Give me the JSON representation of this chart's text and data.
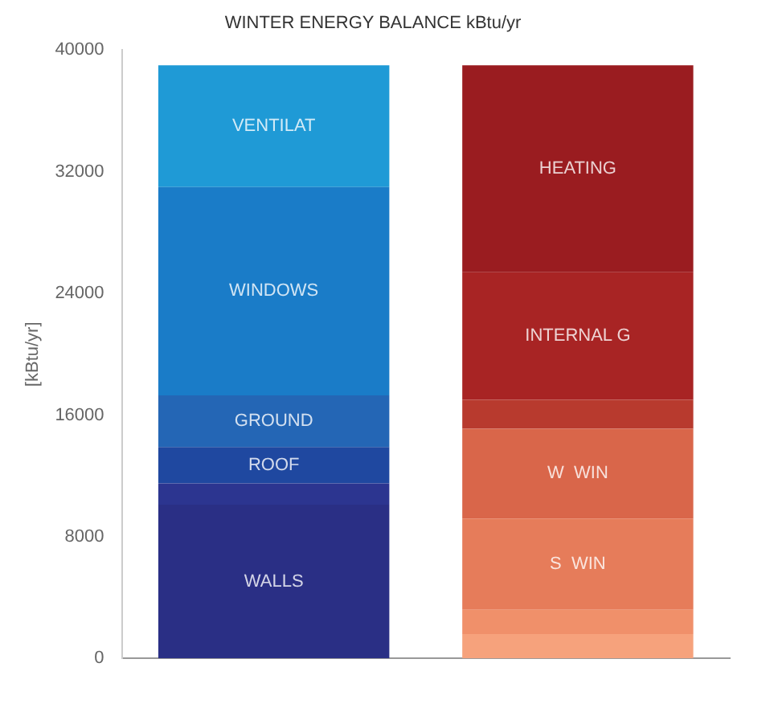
{
  "chart_data": {
    "type": "bar",
    "title": "WINTER ENERGY BALANCE kBtu/yr",
    "ylabel": "[kBtu/yr]",
    "categories": [
      null,
      null
    ],
    "stacked": true,
    "ylim": [
      0,
      40000
    ],
    "yticks": [
      0,
      8000,
      16000,
      24000,
      32000,
      40000
    ],
    "grid": false,
    "legend": false,
    "series": [
      {
        "name": "WALLS",
        "color": "#2a2f85",
        "values": [
          10100,
          null
        ]
      },
      {
        "color": "#2c3590",
        "values": [
          1400,
          null
        ]
      },
      {
        "name": "ROOF",
        "color": "#1f48a0",
        "values": [
          2400,
          null
        ]
      },
      {
        "name": "GROUND",
        "color": "#2466b5",
        "values": [
          3400,
          null
        ]
      },
      {
        "name": "WINDOWS",
        "color": "#1a7cc8",
        "values": [
          13700,
          null
        ]
      },
      {
        "name": "VENTILAT",
        "color": "#1f9ad6",
        "values": [
          8000,
          null
        ]
      },
      {
        "color": "#f6a27c",
        "values": [
          null,
          1600
        ]
      },
      {
        "color": "#f0906a",
        "values": [
          null,
          1600
        ]
      },
      {
        "name": "S  WIN",
        "color": "#e67c5a",
        "values": [
          null,
          6000
        ]
      },
      {
        "name": "W  WIN",
        "color": "#d9664a",
        "values": [
          null,
          5900
        ]
      },
      {
        "color": "#b83a2e",
        "values": [
          null,
          1900
        ]
      },
      {
        "name": "INTERNAL G",
        "color": "#a82424",
        "values": [
          null,
          8400
        ]
      },
      {
        "name": "HEATING",
        "color": "#9a1c20",
        "values": [
          null,
          13600
        ]
      }
    ]
  }
}
